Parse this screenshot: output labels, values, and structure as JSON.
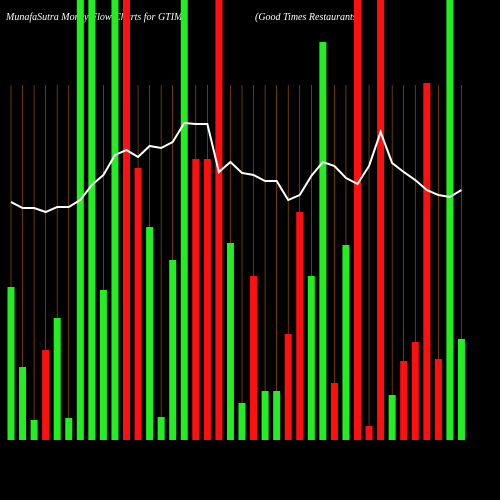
{
  "chart_data": {
    "type": "bar",
    "title": "MunafaSutra  Money Flow  Charts for GTIM",
    "subtitle": "(Good Times Restaurants",
    "values": [
      153,
      73,
      20,
      90,
      122,
      22,
      440,
      440,
      150,
      440,
      440,
      272,
      213,
      23,
      180,
      440,
      281,
      281,
      440,
      197,
      37,
      164,
      49,
      49,
      106,
      228,
      164,
      398,
      57,
      195,
      440,
      14,
      440,
      45,
      79,
      98,
      357,
      81,
      440,
      101
    ],
    "colors": [
      "#22ee22",
      "#22ee22",
      "#22ee22",
      "#ff1010",
      "#22ee22",
      "#22ee22",
      "#22ee22",
      "#22ee22",
      "#22ee22",
      "#22ee22",
      "#ff1010",
      "#ff1010",
      "#22ee22",
      "#22ee22",
      "#22ee22",
      "#22ee22",
      "#ff1010",
      "#ff1010",
      "#ff1010",
      "#22ee22",
      "#22ee22",
      "#ff1010",
      "#22ee22",
      "#22ee22",
      "#ff1010",
      "#ff1010",
      "#22ee22",
      "#22ee22",
      "#ff1010",
      "#22ee22",
      "#ff1010",
      "#ff1010",
      "#ff1010",
      "#22ee22",
      "#ff1010",
      "#ff1010",
      "#ff1010",
      "#ff1010",
      "#22ee22",
      "#22ee22"
    ],
    "line_values": [
      238,
      232,
      232,
      228,
      233,
      233,
      240,
      255,
      265,
      285,
      290,
      283,
      294,
      292,
      298,
      317,
      316,
      316,
      268,
      278,
      267,
      265,
      259,
      259,
      240,
      245,
      264,
      278,
      274,
      262,
      256,
      274,
      308,
      277,
      268,
      260,
      250,
      245,
      243,
      250
    ],
    "line_color": "#ffffff",
    "ylim": [
      0,
      440
    ],
    "grid": true,
    "grid_color": "#b06000"
  }
}
